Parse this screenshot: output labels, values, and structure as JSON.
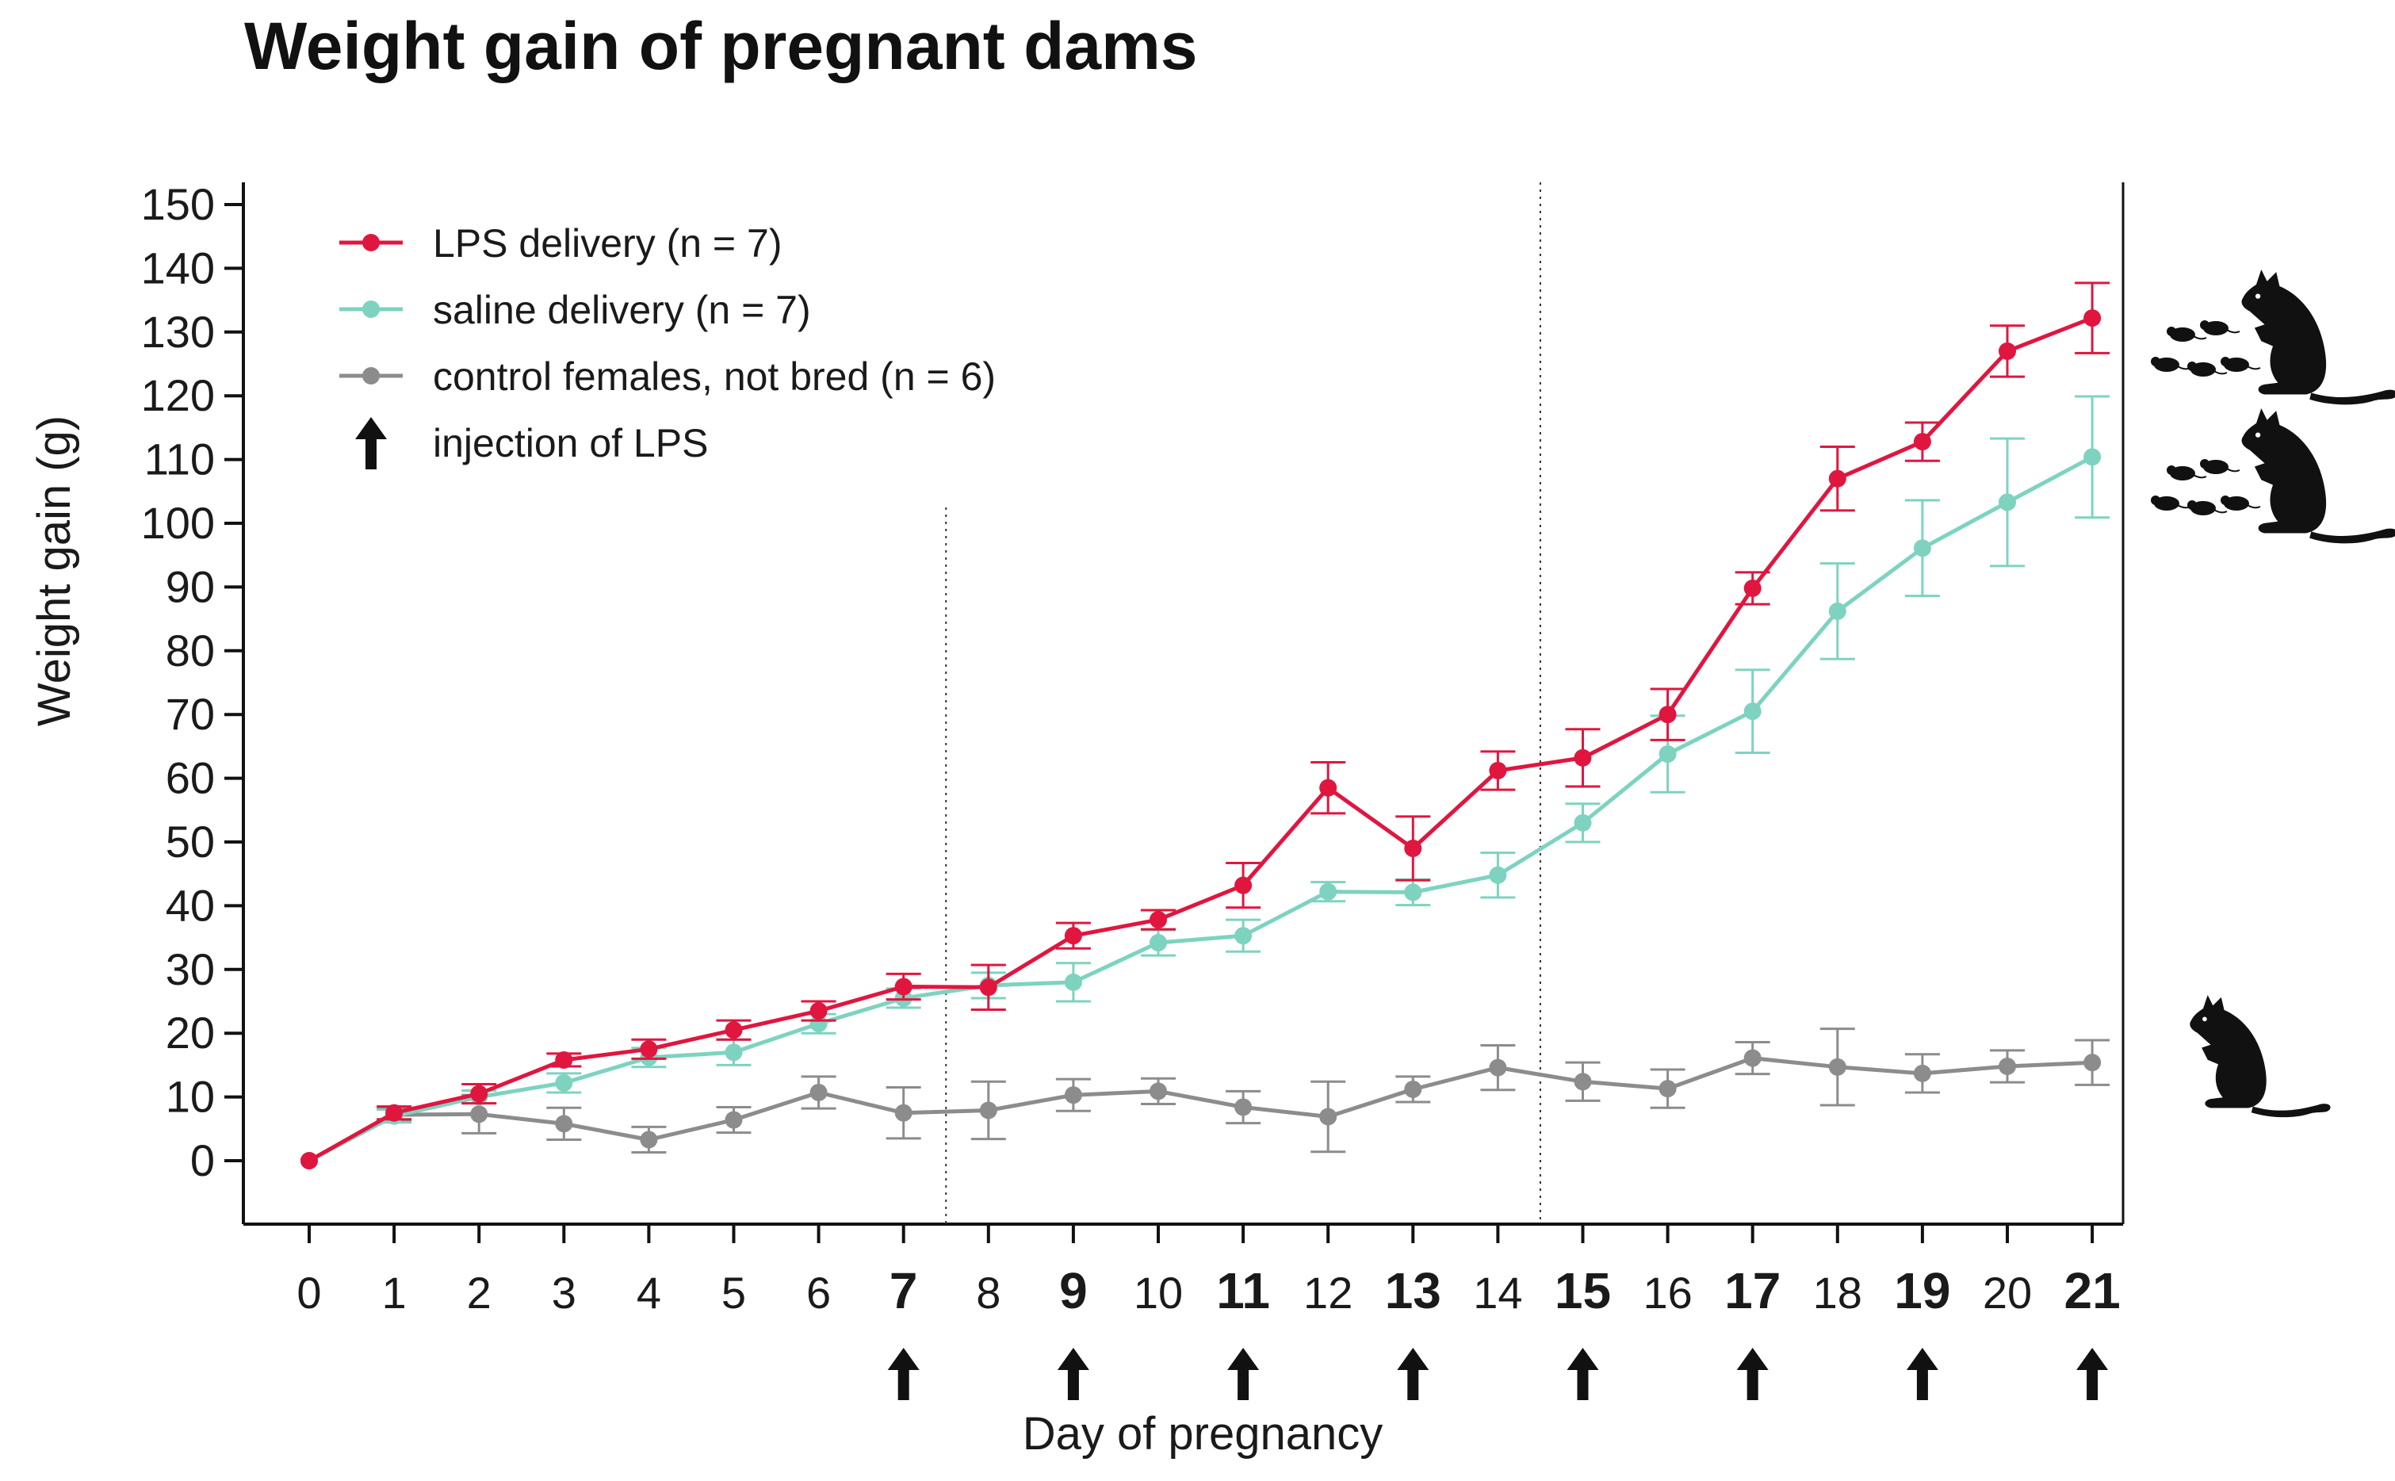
{
  "chart_data": {
    "type": "line",
    "title": "Weight gain of pregnant dams",
    "xlabel": "Day of pregnancy",
    "ylabel": "Weight gain (g)",
    "x": [
      0,
      1,
      2,
      3,
      4,
      5,
      6,
      7,
      8,
      9,
      10,
      11,
      12,
      13,
      14,
      15,
      16,
      17,
      18,
      19,
      20,
      21
    ],
    "x_tick_labels": [
      "0",
      "1",
      "2",
      "3",
      "4",
      "5",
      "6",
      "7",
      "8",
      "9",
      "10",
      "11",
      "12",
      "13",
      "14",
      "15",
      "16",
      "17",
      "18",
      "19",
      "20",
      "21"
    ],
    "bold_x_ticks": [
      7,
      9,
      11,
      13,
      15,
      17,
      19,
      21
    ],
    "injection_days": [
      7,
      9,
      11,
      13,
      15,
      17,
      19,
      21
    ],
    "ylim": [
      -10,
      155
    ],
    "xlim": [
      -0.8,
      21.5
    ],
    "y_ticks": [
      0,
      10,
      20,
      30,
      40,
      50,
      60,
      70,
      80,
      90,
      100,
      110,
      120,
      130,
      140,
      150
    ],
    "y_tick_labels": [
      "0",
      "10",
      "20",
      "30",
      "40",
      "50",
      "60",
      "70",
      "80",
      "90",
      "100",
      "110",
      "120",
      "130",
      "140",
      "150"
    ],
    "vertical_dotted_lines_at": [
      7.5,
      14.5
    ],
    "grid": false,
    "legend_position": "top-left",
    "series": [
      {
        "name": "LPS delivery (n = 7)",
        "color": "#e0163f",
        "x": [
          0,
          1,
          2,
          3,
          4,
          5,
          6,
          7,
          8,
          9,
          10,
          11,
          12,
          13,
          14,
          15,
          16,
          17,
          18,
          19,
          20,
          21
        ],
        "values": [
          0,
          7.5,
          10.5,
          15.8,
          17.5,
          20.5,
          23.5,
          27.3,
          27.2,
          35.3,
          37.8,
          43.2,
          58.5,
          49,
          61.2,
          63.2,
          70,
          89.8,
          107,
          112.8,
          127,
          132.2
        ],
        "errors": [
          0,
          1,
          1.5,
          1,
          1.5,
          1.5,
          1.5,
          2,
          3.5,
          2,
          1.5,
          3.5,
          4,
          5,
          3,
          4.5,
          4,
          2.5,
          5,
          3,
          4,
          5.5
        ]
      },
      {
        "name": "saline delivery (n = 7)",
        "color": "#7dd3c0",
        "x": [
          0,
          1,
          2,
          3,
          4,
          5,
          6,
          7,
          8,
          9,
          10,
          11,
          12,
          13,
          14,
          15,
          16,
          17,
          18,
          19,
          20,
          21
        ],
        "values": [
          0,
          7,
          10,
          12.2,
          16.2,
          17,
          21.5,
          25.5,
          27.5,
          28,
          34.2,
          35.3,
          42.2,
          42.1,
          44.8,
          53,
          63.8,
          70.5,
          86.2,
          96.1,
          103.3,
          110.4
        ],
        "errors": [
          0,
          1,
          1,
          1.5,
          1.5,
          2,
          1.5,
          1.5,
          2,
          3,
          2,
          2.5,
          1.5,
          2,
          3.5,
          3,
          6,
          6.5,
          7.5,
          7.5,
          10,
          9.5
        ]
      },
      {
        "name": "control females, not bred (n = 6)",
        "color": "#8c8c8c",
        "x": [
          0,
          1,
          2,
          4,
          3,
          5,
          6,
          7,
          8,
          9,
          10,
          11,
          12,
          13,
          14,
          15,
          16,
          17,
          18,
          19,
          20,
          21
        ],
        "values": [
          0,
          7.2,
          7.3,
          3.3,
          5.8,
          6.4,
          10.7,
          7.5,
          7.9,
          10.3,
          10.9,
          8.4,
          6.9,
          11.2,
          14.6,
          12.4,
          11.3,
          16.1,
          14.7,
          13.7,
          14.8,
          15.4
        ],
        "errors": [
          0,
          1,
          3,
          2,
          2.5,
          2,
          2.5,
          4,
          4.5,
          2.5,
          2,
          2.5,
          5.5,
          2,
          3.5,
          3,
          3,
          2.5,
          6,
          3,
          2.5,
          3.5
        ]
      }
    ],
    "legend": [
      {
        "label": "LPS delivery (n = 7)",
        "marker": "line-dot",
        "color": "#e0163f"
      },
      {
        "label": "saline delivery (n = 7)",
        "marker": "line-dot",
        "color": "#7dd3c0"
      },
      {
        "label": "control females, not bred (n = 6)",
        "marker": "line-dot",
        "color": "#8c8c8c"
      },
      {
        "label": "injection of LPS",
        "marker": "up-arrow",
        "color": "#111111"
      }
    ],
    "side_icons": [
      {
        "name": "rat-with-pups-icon",
        "alongside_series": "LPS delivery (n = 7)"
      },
      {
        "name": "rat-with-pups-icon",
        "alongside_series": "saline delivery (n = 7)"
      },
      {
        "name": "rat-icon",
        "alongside_series": "control females, not bred (n = 6)"
      }
    ]
  }
}
